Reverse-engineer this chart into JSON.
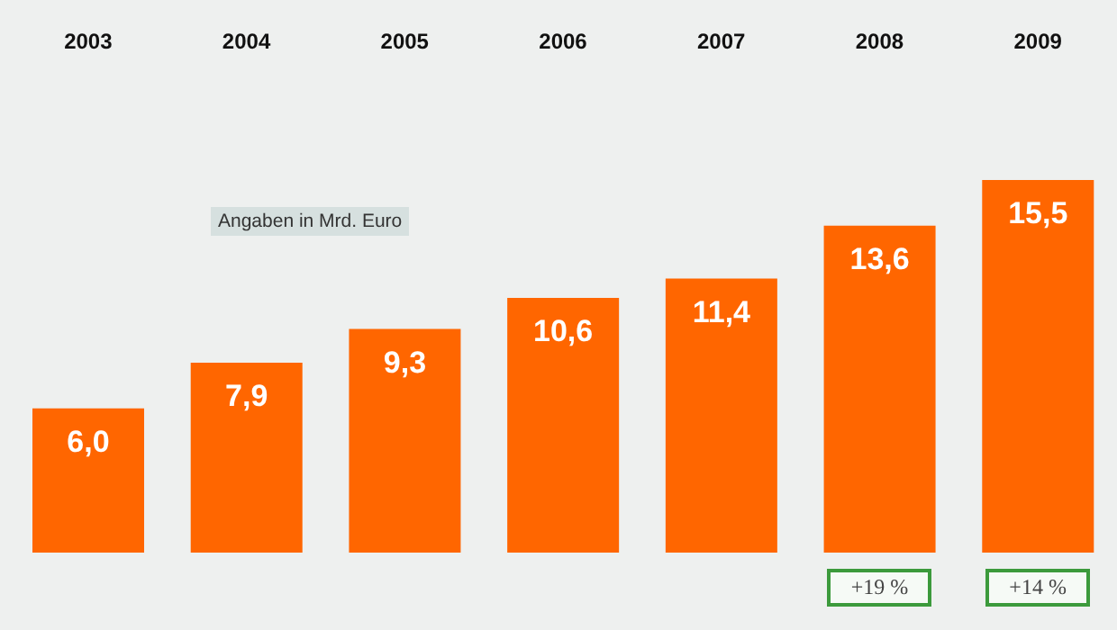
{
  "chart_data": {
    "type": "bar",
    "categories": [
      "2003",
      "2004",
      "2005",
      "2006",
      "2007",
      "2008",
      "2009"
    ],
    "values": [
      6.0,
      7.9,
      9.3,
      10.6,
      11.4,
      13.6,
      15.5
    ],
    "color": "#ff6600",
    "value_labels": [
      "6,0",
      "7,9",
      "9,3",
      "10,6",
      "11,4",
      "13,6",
      "15,5"
    ],
    "annotations": [
      "Angaben in Mrd. Euro",
      "+19 %",
      "+14 %"
    ]
  }
}
